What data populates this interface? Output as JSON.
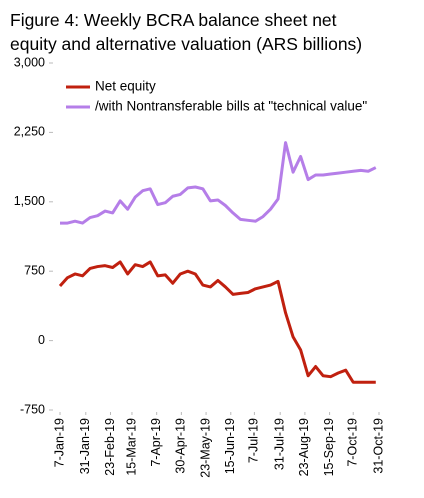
{
  "chart_data": {
    "type": "line",
    "title": [
      "Figure 4: Weekly BCRA balance sheet net",
      "equity and alternative valuation (ARS billions)"
    ],
    "x": [
      "2019-01-07",
      "2019-01-14",
      "2019-01-21",
      "2019-01-28",
      "2019-02-04",
      "2019-02-11",
      "2019-02-18",
      "2019-02-25",
      "2019-03-04",
      "2019-03-11",
      "2019-03-18",
      "2019-03-25",
      "2019-04-01",
      "2019-04-08",
      "2019-04-15",
      "2019-04-22",
      "2019-04-29",
      "2019-05-06",
      "2019-05-13",
      "2019-05-20",
      "2019-05-27",
      "2019-06-03",
      "2019-06-10",
      "2019-06-17",
      "2019-06-24",
      "2019-07-01",
      "2019-07-08",
      "2019-07-15",
      "2019-07-22",
      "2019-07-29",
      "2019-08-05",
      "2019-08-12",
      "2019-08-19",
      "2019-08-26",
      "2019-09-02",
      "2019-09-09",
      "2019-09-16",
      "2019-09-23",
      "2019-09-30",
      "2019-10-07",
      "2019-10-14",
      "2019-10-21",
      "2019-10-28"
    ],
    "series": [
      {
        "name": "Net equity",
        "color": "#c0200f",
        "values": [
          590,
          680,
          720,
          700,
          780,
          800,
          810,
          790,
          850,
          720,
          820,
          800,
          850,
          700,
          710,
          620,
          720,
          750,
          720,
          600,
          580,
          650,
          580,
          500,
          510,
          520,
          560,
          580,
          600,
          640,
          300,
          40,
          -100,
          -380,
          -280,
          -380,
          -390,
          -350,
          -320,
          -450,
          -450,
          -450,
          -450
        ]
      },
      {
        "name": "/with Nontransferable bills at \"technical value\"",
        "color": "#b57ee8",
        "values": [
          1270,
          1270,
          1290,
          1270,
          1330,
          1350,
          1400,
          1380,
          1510,
          1420,
          1550,
          1620,
          1640,
          1470,
          1490,
          1560,
          1580,
          1650,
          1660,
          1640,
          1510,
          1520,
          1460,
          1380,
          1310,
          1300,
          1290,
          1340,
          1420,
          1530,
          2140,
          1820,
          1990,
          1740,
          1790,
          1790,
          1800,
          1810,
          1820,
          1830,
          1840,
          1830,
          1870
        ]
      }
    ],
    "xlim": [
      "2019-01-07",
      "2019-10-31"
    ],
    "xticks": [
      {
        "value": "2019-01-07",
        "label": "7-Jan-19"
      },
      {
        "value": "2019-01-31",
        "label": "31-Jan-19"
      },
      {
        "value": "2019-02-23",
        "label": "23-Feb-19"
      },
      {
        "value": "2019-03-15",
        "label": "15-Mar-19"
      },
      {
        "value": "2019-04-07",
        "label": "7-Apr-19"
      },
      {
        "value": "2019-04-30",
        "label": "30-Apr-19"
      },
      {
        "value": "2019-05-23",
        "label": "23-May-19"
      },
      {
        "value": "2019-06-15",
        "label": "15-Jun-19"
      },
      {
        "value": "2019-07-07",
        "label": "7-Jul-19"
      },
      {
        "value": "2019-07-31",
        "label": "31-Jul-19"
      },
      {
        "value": "2019-08-23",
        "label": "23-Aug-19"
      },
      {
        "value": "2019-09-15",
        "label": "15-Sep-19"
      },
      {
        "value": "2019-10-07",
        "label": "7-Oct-19"
      },
      {
        "value": "2019-10-31",
        "label": "31-Oct-19"
      }
    ],
    "ylim": [
      -750,
      3000
    ],
    "yticks": [
      {
        "value": -750,
        "label": "-750"
      },
      0,
      750,
      {
        "value": 1500,
        "label": "1,500"
      },
      {
        "value": 2250,
        "label": "2,250"
      },
      {
        "value": 3000,
        "label": "3,000"
      }
    ],
    "grid": false,
    "legend": "upper left"
  }
}
